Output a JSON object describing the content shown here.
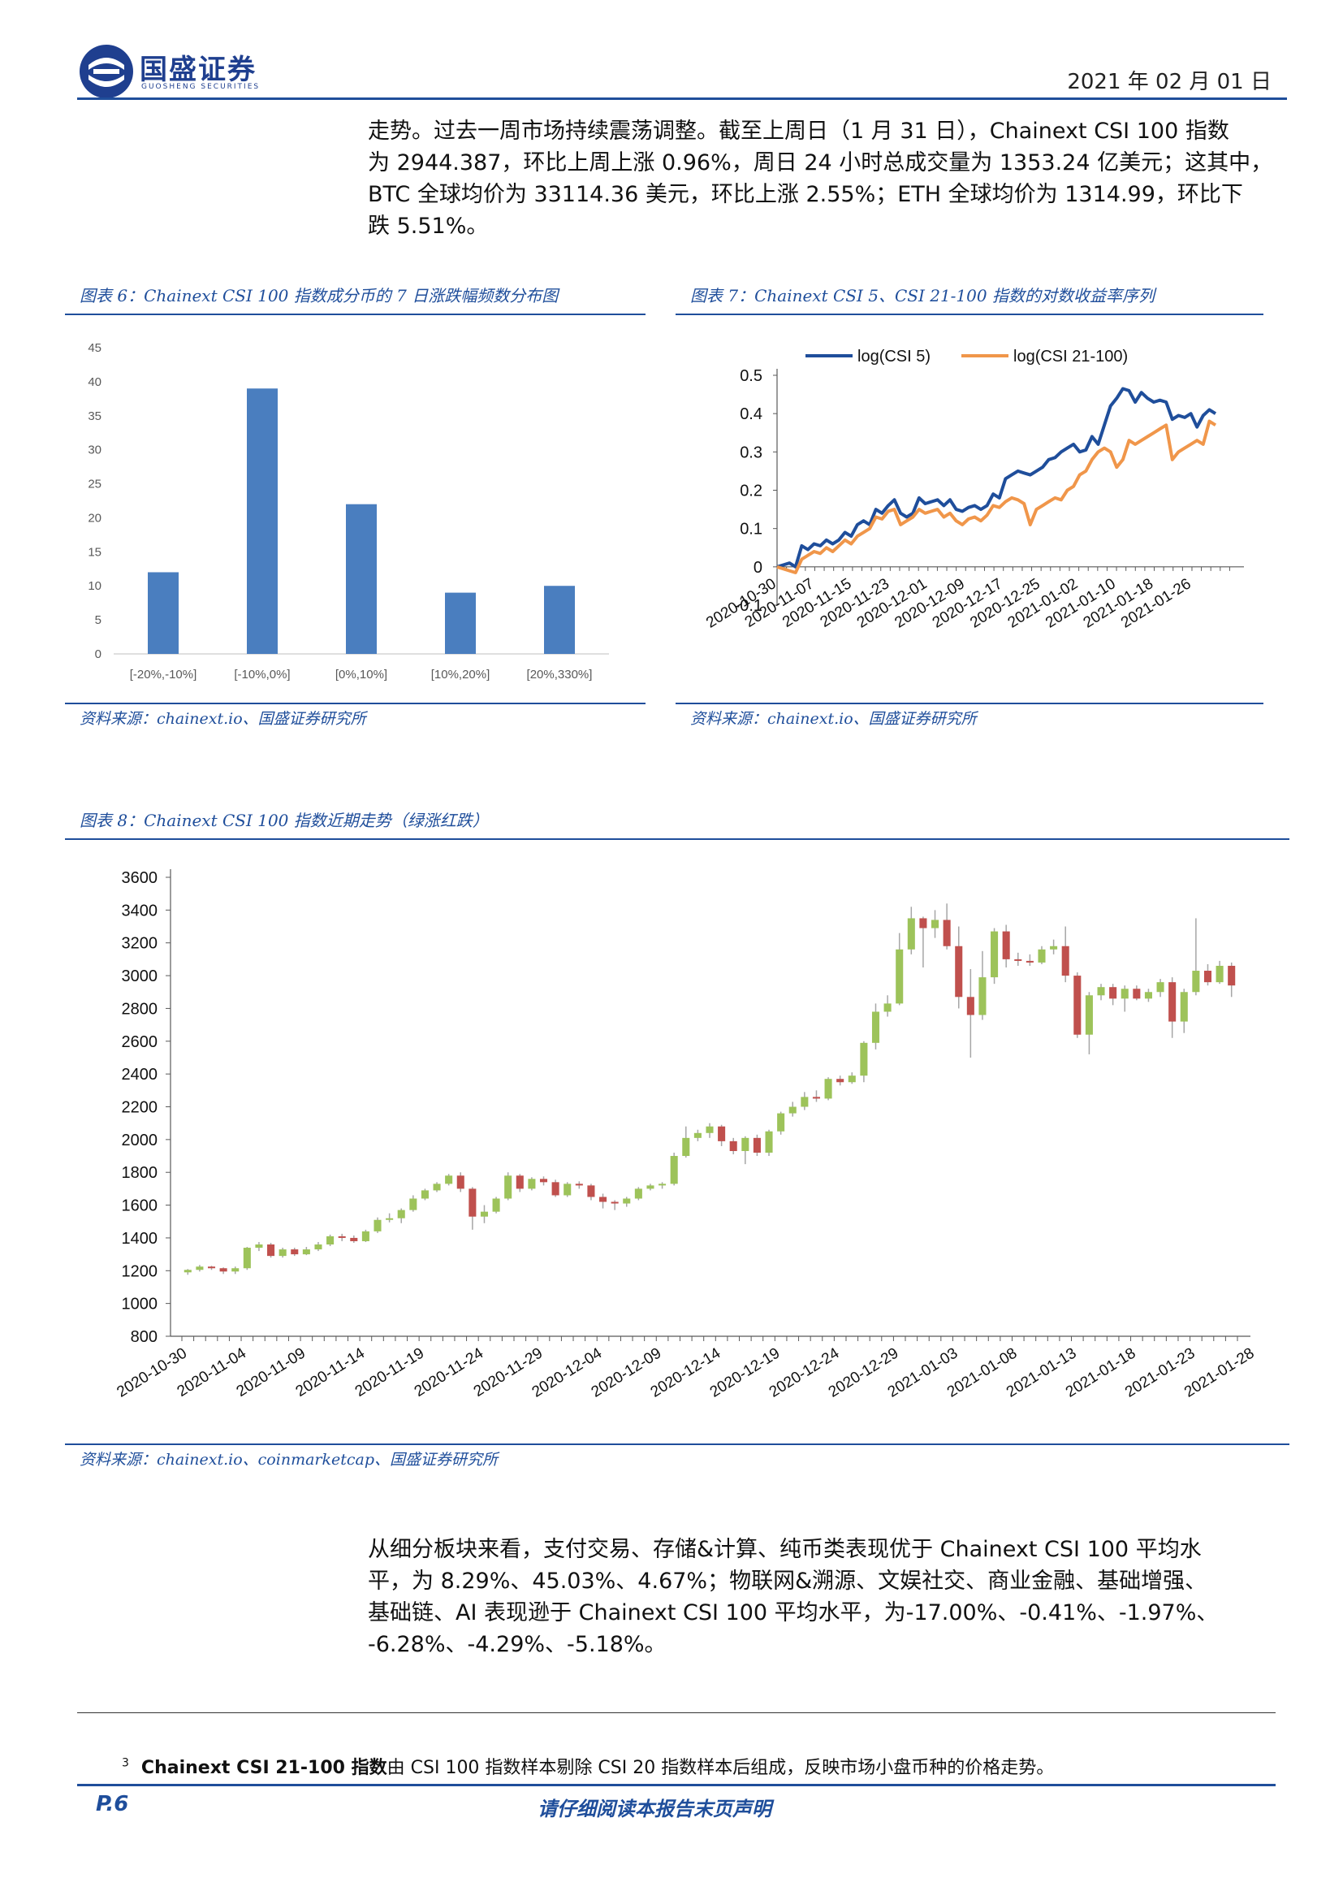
{
  "header": {
    "brand": "国盛证券",
    "brand_sub": "GUOSHENG SECURITIES",
    "date": "2021 年 02 月 01 日"
  },
  "intro_paragraph": [
    "走势。过去一周市场持续震荡调整。截至上周日（1 月 31 日），Chainext CSI 100 指数",
    "为 2944.387，环比上周上涨 0.96%，周日 24 小时总成交量为 1353.24 亿美元；这其中，",
    "BTC 全球均价为 33114.36 美元，环比上涨 2.55%；ETH 全球均价为 1314.99，环比下",
    "跌 5.51%。"
  ],
  "figure6": {
    "caption": "图表 6：Chainext CSI 100 指数成分币的 7 日涨跌幅频数分布图",
    "source": "资料来源：chainext.io、国盛证券研究所"
  },
  "figure7": {
    "caption": "图表 7：Chainext CSI 5、CSI 21-100 指数的对数收益率序列",
    "source": "资料来源：chainext.io、国盛证券研究所"
  },
  "figure8": {
    "caption": "图表 8：Chainext CSI 100 指数近期走势（绿涨红跌）",
    "source": "资料来源：chainext.io、coinmarketcap、国盛证券研究所"
  },
  "second_paragraph": [
    "从细分板块来看，支付交易、存储&计算、纯币类表现优于 Chainext CSI 100 平均水",
    "平，为 8.29%、45.03%、4.67%；物联网&溯源、文娱社交、商业金融、基础增强、",
    "基础链、AI 表现逊于 Chainext CSI 100 平均水平，为-17.00%、-0.41%、-1.97%、",
    "-6.28%、-4.29%、-5.18%。"
  ],
  "footnote": {
    "mark": "3",
    "bold": "Chainext CSI 21-100 指数",
    "text": "由 CSI 100 指数样本剔除 CSI 20 指数样本后组成，反映市场小盘币种的价格走势。"
  },
  "footer": {
    "page": "P.6",
    "note": "请仔细阅读本报告末页声明"
  },
  "colors": {
    "brand_blue": "#1f4e9b",
    "bar": "#4a7ebf",
    "csi5": "#1f4e9b",
    "csi21": "#f0964a",
    "up": "#9dc35a",
    "down": "#c0504d"
  },
  "chart_data": [
    {
      "type": "bar",
      "categories": [
        "[-20%,-10%]",
        "[-10%,0%]",
        "[0%,10%]",
        "[10%,20%]",
        "[20%,330%]"
      ],
      "values": [
        12,
        39,
        22,
        9,
        10
      ],
      "ylim": [
        0,
        45
      ],
      "yticks": [
        0,
        5,
        10,
        15,
        20,
        25,
        30,
        35,
        40,
        45
      ],
      "grid": false
    },
    {
      "type": "line",
      "x_ticks": [
        "2020-10-30",
        "2020-11-07",
        "2020-11-15",
        "2020-11-23",
        "2020-12-01",
        "2020-12-09",
        "2020-12-17",
        "2020-12-25",
        "2021-01-02",
        "2021-01-10",
        "2021-01-18",
        "2021-01-26"
      ],
      "x_start": "2020-10-30",
      "x_end": "2021-01-31",
      "ylim": [
        -0.1,
        0.5
      ],
      "yticks": [
        "-0.1",
        "0",
        "0.1",
        "0.2",
        "0.3",
        "0.4",
        "0.5"
      ],
      "legend_position": "top",
      "series": [
        {
          "name": "log(CSI 5)",
          "values": [
            0.0,
            0.005,
            0.01,
            0.0,
            0.055,
            0.045,
            0.06,
            0.055,
            0.07,
            0.06,
            0.07,
            0.09,
            0.08,
            0.11,
            0.12,
            0.11,
            0.15,
            0.14,
            0.16,
            0.175,
            0.14,
            0.13,
            0.14,
            0.18,
            0.165,
            0.17,
            0.175,
            0.16,
            0.175,
            0.15,
            0.145,
            0.155,
            0.16,
            0.15,
            0.16,
            0.19,
            0.18,
            0.23,
            0.24,
            0.25,
            0.245,
            0.24,
            0.25,
            0.26,
            0.28,
            0.285,
            0.3,
            0.31,
            0.32,
            0.3,
            0.305,
            0.34,
            0.32,
            0.37,
            0.42,
            0.44,
            0.465,
            0.46,
            0.43,
            0.455,
            0.44,
            0.43,
            0.435,
            0.43,
            0.385,
            0.395,
            0.39,
            0.4,
            0.365,
            0.395,
            0.41,
            0.4
          ]
        },
        {
          "name": "log(CSI 21-100)",
          "values": [
            0.0,
            -0.005,
            -0.01,
            -0.015,
            0.02,
            0.03,
            0.04,
            0.035,
            0.05,
            0.04,
            0.055,
            0.07,
            0.06,
            0.08,
            0.09,
            0.1,
            0.13,
            0.125,
            0.145,
            0.15,
            0.11,
            0.12,
            0.13,
            0.15,
            0.14,
            0.145,
            0.15,
            0.13,
            0.14,
            0.12,
            0.11,
            0.125,
            0.13,
            0.12,
            0.135,
            0.16,
            0.155,
            0.17,
            0.18,
            0.175,
            0.165,
            0.11,
            0.15,
            0.16,
            0.17,
            0.18,
            0.175,
            0.2,
            0.21,
            0.24,
            0.25,
            0.28,
            0.3,
            0.31,
            0.3,
            0.26,
            0.28,
            0.33,
            0.32,
            0.33,
            0.34,
            0.35,
            0.36,
            0.37,
            0.28,
            0.3,
            0.31,
            0.32,
            0.33,
            0.32,
            0.38,
            0.37
          ]
        }
      ]
    },
    {
      "type": "candlestick",
      "x_ticks": [
        "2020-10-30",
        "2020-11-04",
        "2020-11-09",
        "2020-11-14",
        "2020-11-19",
        "2020-11-24",
        "2020-11-29",
        "2020-12-04",
        "2020-12-09",
        "2020-12-14",
        "2020-12-19",
        "2020-12-24",
        "2020-12-29",
        "2021-01-03",
        "2021-01-08",
        "2021-01-13",
        "2021-01-18",
        "2021-01-23",
        "2021-01-28"
      ],
      "ylim": [
        800,
        3600
      ],
      "yticks": [
        800,
        1000,
        1200,
        1400,
        1600,
        1800,
        2000,
        2200,
        2400,
        2600,
        2800,
        3000,
        3200,
        3400,
        3600
      ],
      "legend": "绿涨红跌",
      "candles": [
        [
          1190,
          1205,
          1175,
          1210
        ],
        [
          1205,
          1225,
          1195,
          1235
        ],
        [
          1225,
          1215,
          1205,
          1230
        ],
        [
          1215,
          1195,
          1180,
          1220
        ],
        [
          1195,
          1215,
          1180,
          1225
        ],
        [
          1215,
          1340,
          1205,
          1345
        ],
        [
          1340,
          1360,
          1320,
          1375
        ],
        [
          1360,
          1290,
          1280,
          1370
        ],
        [
          1290,
          1330,
          1280,
          1340
        ],
        [
          1330,
          1300,
          1290,
          1340
        ],
        [
          1300,
          1330,
          1295,
          1345
        ],
        [
          1330,
          1360,
          1320,
          1375
        ],
        [
          1360,
          1410,
          1350,
          1420
        ],
        [
          1410,
          1400,
          1380,
          1425
        ],
        [
          1400,
          1380,
          1370,
          1415
        ],
        [
          1380,
          1440,
          1375,
          1450
        ],
        [
          1440,
          1510,
          1430,
          1525
        ],
        [
          1510,
          1520,
          1495,
          1550
        ],
        [
          1520,
          1570,
          1490,
          1580
        ],
        [
          1570,
          1640,
          1560,
          1660
        ],
        [
          1640,
          1690,
          1630,
          1700
        ],
        [
          1690,
          1730,
          1680,
          1740
        ],
        [
          1730,
          1780,
          1720,
          1790
        ],
        [
          1780,
          1700,
          1680,
          1800
        ],
        [
          1700,
          1530,
          1450,
          1710
        ],
        [
          1530,
          1560,
          1490,
          1600
        ],
        [
          1560,
          1640,
          1550,
          1650
        ],
        [
          1640,
          1780,
          1630,
          1800
        ],
        [
          1780,
          1700,
          1680,
          1790
        ],
        [
          1700,
          1760,
          1690,
          1770
        ],
        [
          1760,
          1740,
          1720,
          1775
        ],
        [
          1740,
          1660,
          1650,
          1755
        ],
        [
          1660,
          1730,
          1650,
          1740
        ],
        [
          1730,
          1720,
          1700,
          1745
        ],
        [
          1720,
          1650,
          1630,
          1730
        ],
        [
          1650,
          1620,
          1580,
          1670
        ],
        [
          1620,
          1610,
          1570,
          1630
        ],
        [
          1610,
          1640,
          1590,
          1650
        ],
        [
          1640,
          1700,
          1630,
          1710
        ],
        [
          1700,
          1720,
          1690,
          1730
        ],
        [
          1720,
          1730,
          1700,
          1740
        ],
        [
          1730,
          1900,
          1720,
          1920
        ],
        [
          1900,
          2010,
          1890,
          2080
        ],
        [
          2010,
          2040,
          1990,
          2060
        ],
        [
          2040,
          2080,
          2010,
          2100
        ],
        [
          2080,
          1990,
          1960,
          2090
        ],
        [
          1990,
          1930,
          1910,
          2010
        ],
        [
          1930,
          2010,
          1850,
          2020
        ],
        [
          2010,
          1920,
          1900,
          2030
        ],
        [
          1920,
          2050,
          1900,
          2060
        ],
        [
          2050,
          2160,
          2030,
          2170
        ],
        [
          2160,
          2200,
          2140,
          2230
        ],
        [
          2200,
          2260,
          2180,
          2290
        ],
        [
          2260,
          2250,
          2230,
          2300
        ],
        [
          2250,
          2370,
          2240,
          2380
        ],
        [
          2370,
          2350,
          2330,
          2390
        ],
        [
          2350,
          2390,
          2340,
          2410
        ],
        [
          2390,
          2590,
          2350,
          2600
        ],
        [
          2590,
          2780,
          2550,
          2830
        ],
        [
          2780,
          2830,
          2750,
          2880
        ],
        [
          2830,
          3160,
          2820,
          3260
        ],
        [
          3160,
          3350,
          3130,
          3420
        ],
        [
          3350,
          3290,
          3050,
          3360
        ],
        [
          3290,
          3340,
          3230,
          3400
        ],
        [
          3340,
          3180,
          3160,
          3440
        ],
        [
          3180,
          2870,
          2800,
          3300
        ],
        [
          2870,
          2760,
          2500,
          3040
        ],
        [
          2760,
          2990,
          2730,
          3150
        ],
        [
          2990,
          3270,
          2950,
          3290
        ],
        [
          3270,
          3100,
          3050,
          3310
        ],
        [
          3100,
          3090,
          3060,
          3140
        ],
        [
          3090,
          3080,
          3060,
          3130
        ],
        [
          3080,
          3160,
          3070,
          3180
        ],
        [
          3160,
          3180,
          3130,
          3220
        ],
        [
          3180,
          3000,
          2960,
          3300
        ],
        [
          3000,
          2640,
          2620,
          3020
        ],
        [
          2640,
          2880,
          2520,
          2900
        ],
        [
          2880,
          2930,
          2850,
          2950
        ],
        [
          2930,
          2860,
          2820,
          2950
        ],
        [
          2860,
          2920,
          2780,
          2940
        ],
        [
          2920,
          2860,
          2850,
          2940
        ],
        [
          2860,
          2900,
          2840,
          2920
        ],
        [
          2900,
          2960,
          2870,
          2980
        ],
        [
          2960,
          2720,
          2620,
          2990
        ],
        [
          2720,
          2900,
          2650,
          2920
        ],
        [
          2900,
          3030,
          2880,
          3350
        ],
        [
          3030,
          2960,
          2940,
          3070
        ],
        [
          2960,
          3060,
          2950,
          3090
        ],
        [
          3060,
          2940,
          2870,
          3080
        ]
      ]
    }
  ]
}
